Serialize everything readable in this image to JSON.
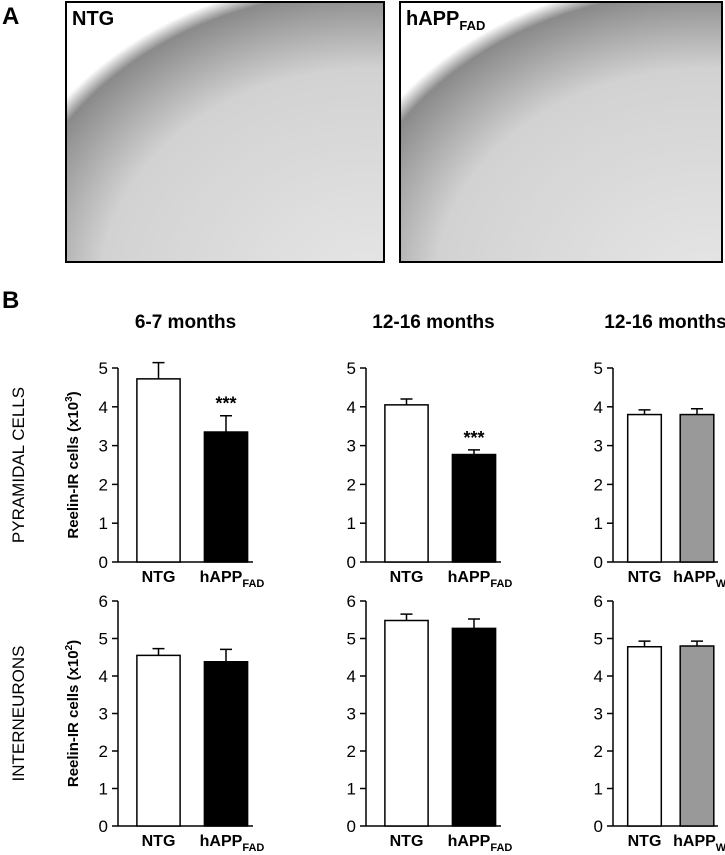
{
  "panel_labels": [
    "A",
    "B"
  ],
  "micrographs": [
    {
      "label": "NTG"
    },
    {
      "label": "hAPP",
      "sub": "FAD"
    }
  ],
  "chart_data": [
    {
      "type": "bar",
      "title": "6-7 months",
      "row_label": "PYRAMIDAL CELLS",
      "ylabel": {
        "text": "Reelin-IR cells (x10",
        "sup": "3",
        "end": ")"
      },
      "categories": [
        "NTG",
        {
          "text": "hAPP",
          "sub": "FAD"
        }
      ],
      "values": [
        4.72,
        3.35
      ],
      "errors": [
        0.42,
        0.42
      ],
      "colors": [
        "#ffffff",
        "#000000"
      ],
      "annotations": [
        null,
        "***"
      ],
      "ylim": [
        0,
        5
      ],
      "yticks": [
        0,
        1,
        2,
        3,
        4,
        5
      ]
    },
    {
      "type": "bar",
      "title": "12-16 months",
      "categories": [
        "NTG",
        {
          "text": "hAPP",
          "sub": "FAD"
        }
      ],
      "values": [
        4.05,
        2.77
      ],
      "errors": [
        0.15,
        0.12
      ],
      "colors": [
        "#ffffff",
        "#000000"
      ],
      "annotations": [
        null,
        "***"
      ],
      "ylim": [
        0,
        5
      ],
      "yticks": [
        0,
        1,
        2,
        3,
        4,
        5
      ]
    },
    {
      "type": "bar",
      "title": "12-16 months",
      "categories": [
        "NTG",
        {
          "text": "hAPP",
          "sub": "WT"
        }
      ],
      "values": [
        3.8,
        3.8
      ],
      "errors": [
        0.12,
        0.15
      ],
      "colors": [
        "#ffffff",
        "#999999"
      ],
      "ylim": [
        0,
        5
      ],
      "yticks": [
        0,
        1,
        2,
        3,
        4,
        5
      ]
    },
    {
      "type": "bar",
      "row_label": "INTERNEURONS",
      "ylabel": {
        "text": "Reelin-IR cells (x10",
        "sup": "2",
        "end": ")"
      },
      "categories": [
        "NTG",
        {
          "text": "hAPP",
          "sub": "FAD"
        }
      ],
      "values": [
        4.55,
        4.38
      ],
      "errors": [
        0.18,
        0.33
      ],
      "colors": [
        "#ffffff",
        "#000000"
      ],
      "ylim": [
        0,
        6
      ],
      "yticks": [
        0,
        1,
        2,
        3,
        4,
        5,
        6
      ]
    },
    {
      "type": "bar",
      "categories": [
        "NTG",
        {
          "text": "hAPP",
          "sub": "FAD"
        }
      ],
      "values": [
        5.48,
        5.27
      ],
      "errors": [
        0.17,
        0.25
      ],
      "colors": [
        "#ffffff",
        "#000000"
      ],
      "ylim": [
        0,
        6
      ],
      "yticks": [
        0,
        1,
        2,
        3,
        4,
        5,
        6
      ]
    },
    {
      "type": "bar",
      "categories": [
        "NTG",
        {
          "text": "hAPP",
          "sub": "WT"
        }
      ],
      "values": [
        4.78,
        4.8
      ],
      "errors": [
        0.15,
        0.13
      ],
      "colors": [
        "#ffffff",
        "#999999"
      ],
      "ylim": [
        0,
        6
      ],
      "yticks": [
        0,
        1,
        2,
        3,
        4,
        5,
        6
      ]
    }
  ]
}
